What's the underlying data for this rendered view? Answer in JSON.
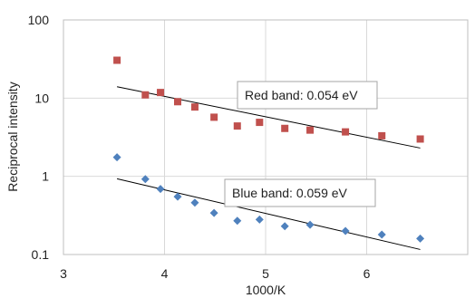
{
  "chart_data": {
    "type": "scatter",
    "xlabel": "1000/K",
    "ylabel": "Reciprocal intensity",
    "xlim": [
      3,
      7
    ],
    "ylim": [
      0.1,
      100
    ],
    "y_scale": "log",
    "x_ticks": [
      "3",
      "4",
      "5",
      "6"
    ],
    "y_ticks": [
      "0.1",
      "1",
      "10",
      "100"
    ],
    "grid": "vertical-and-horizontal",
    "series": [
      {
        "color": "#c0504d",
        "marker": "square",
        "x": [
          3.53,
          3.81,
          3.96,
          4.13,
          4.3,
          4.49,
          4.72,
          4.94,
          5.19,
          5.44,
          5.79,
          6.15,
          6.53
        ],
        "y": [
          30.5,
          11.0,
          11.8,
          9.0,
          7.7,
          5.7,
          4.4,
          4.9,
          4.1,
          3.9,
          3.7,
          3.3,
          3.0
        ],
        "trendline": {
          "x": [
            3.53,
            6.53
          ],
          "y": [
            14.0,
            2.3
          ]
        }
      },
      {
        "color": "#4f81bd",
        "marker": "diamond",
        "x": [
          3.53,
          3.81,
          3.96,
          4.13,
          4.3,
          4.49,
          4.72,
          4.94,
          5.19,
          5.44,
          5.79,
          6.15,
          6.53
        ],
        "y": [
          1.75,
          0.92,
          0.69,
          0.55,
          0.46,
          0.34,
          0.27,
          0.28,
          0.23,
          0.24,
          0.2,
          0.18,
          0.16
        ],
        "trendline": {
          "x": [
            3.53,
            6.53
          ],
          "y": [
            0.93,
            0.116
          ]
        }
      }
    ],
    "annotations": [
      {
        "text": "Red band: 0.054 eV",
        "series": 0
      },
      {
        "text": "Blue band: 0.059 eV",
        "series": 1
      }
    ]
  }
}
